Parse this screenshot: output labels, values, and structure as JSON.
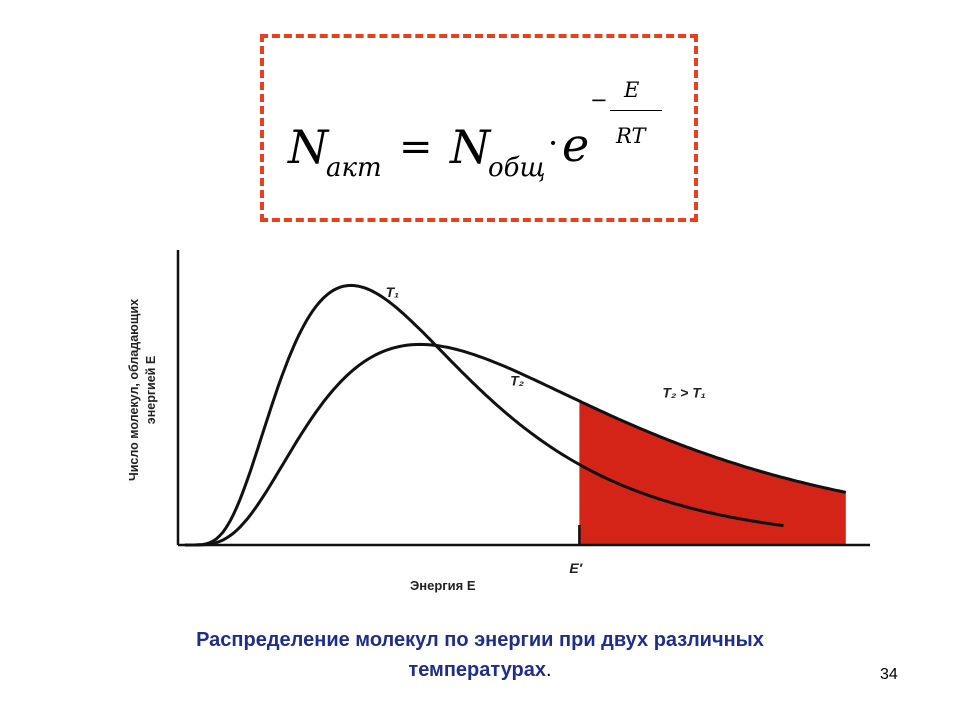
{
  "formula": {
    "n_left": "N",
    "sub_left": "акт",
    "equals": "=",
    "n_right": "N",
    "sub_right": "общ",
    "dot": "·",
    "e": "e",
    "exp_minus": "−",
    "exp_num": "E",
    "exp_den": "RT",
    "border_color": "#e8401c"
  },
  "chart_data": {
    "type": "line",
    "xlabel": "Энергия E",
    "ylabel_line1": "Число молекул, обладающих",
    "ylabel_line2": "энергией E",
    "series": [
      {
        "name": "T₁",
        "peak_x": 0.25,
        "peak_y": 0.88
      },
      {
        "name": "T₂",
        "peak_x": 0.35,
        "peak_y": 0.68
      }
    ],
    "threshold_label": "E′",
    "threshold_x": 0.58,
    "relation_label": "T₂ > T₁",
    "shaded_color": "#d42418"
  },
  "caption": {
    "line1": "Распределение молекул по энергии при двух различных",
    "line2": "температурах",
    "end": "."
  },
  "slide_number": "34"
}
